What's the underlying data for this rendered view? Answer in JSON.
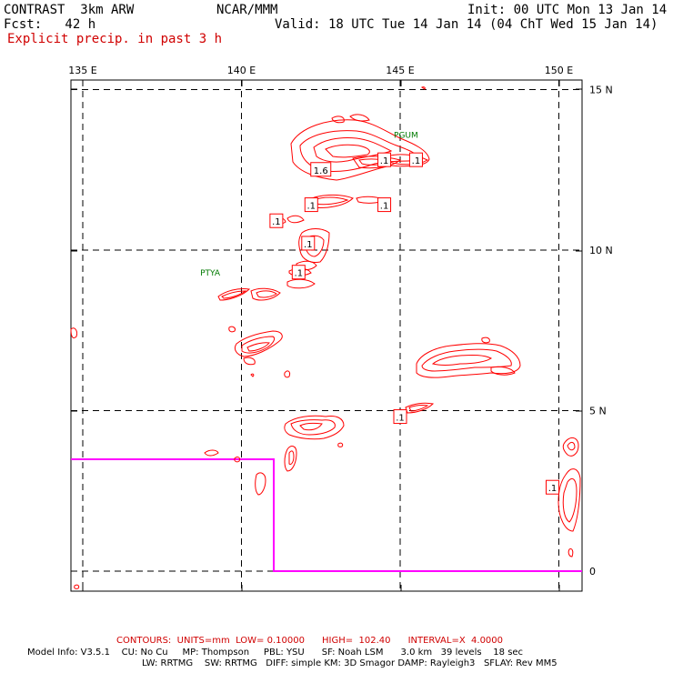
{
  "header": {
    "experiment": "CONTRAST  3km ARW",
    "org": "NCAR/MMM",
    "init": "Init: 00 UTC Mon 13 Jan 14",
    "fcst": "Fcst:   42 h",
    "valid": "Valid: 18 UTC Tue 14 Jan 14 (04 ChT Wed 15 Jan 14)",
    "field": "Explicit precip. in past 3 h"
  },
  "map": {
    "lon_labels": [
      "135 E",
      "140 E",
      "145 E",
      "150 E"
    ],
    "lon_values": [
      135,
      140,
      145,
      150
    ],
    "lat_labels": [
      "15 N",
      "10 N",
      "5 N",
      "0"
    ],
    "lat_values": [
      15,
      10,
      5,
      0
    ],
    "stations": [
      {
        "id": "PTYA",
        "lon": 138.7,
        "lat": 9.2
      },
      {
        "id": "PGUM",
        "lon": 144.8,
        "lat": 13.5
      }
    ],
    "contour_color": "#ff0000",
    "domain_box_color": "#ff00ff",
    "station_color": "#007a00",
    "contour_labels": [
      {
        "text": ".1",
        "lon": 144.5,
        "lat": 12.8
      },
      {
        "text": ".1",
        "lon": 145.5,
        "lat": 12.8
      },
      {
        "text": "1.6",
        "lon": 142.5,
        "lat": 12.5
      },
      {
        "text": ".1",
        "lon": 142.2,
        "lat": 11.4
      },
      {
        "text": ".1",
        "lon": 144.5,
        "lat": 11.4
      },
      {
        "text": ".1",
        "lon": 141.1,
        "lat": 10.9
      },
      {
        "text": ".1",
        "lon": 142.1,
        "lat": 10.2
      },
      {
        "text": ".1",
        "lon": 141.8,
        "lat": 9.3
      },
      {
        "text": ".1",
        "lon": 145.0,
        "lat": 4.8
      },
      {
        "text": ".1",
        "lon": 149.8,
        "lat": 2.6
      }
    ]
  },
  "footer": {
    "contours": "CONTOURS:  UNITS=mm  LOW= 0.10000      HIGH=  102.40      INTERVAL=X  4.0000",
    "model_line1": "Model Info: V3.5.1    CU: No Cu     MP: Thompson     PBL: YSU      SF: Noah LSM      3.0 km   39 levels    18 sec",
    "model_line2": "LW: RRTMG    SW: RRTMG   DIFF: simple KM: 3D Smagor DAMP: Rayleigh3   SFLAY: Rev MM5"
  }
}
